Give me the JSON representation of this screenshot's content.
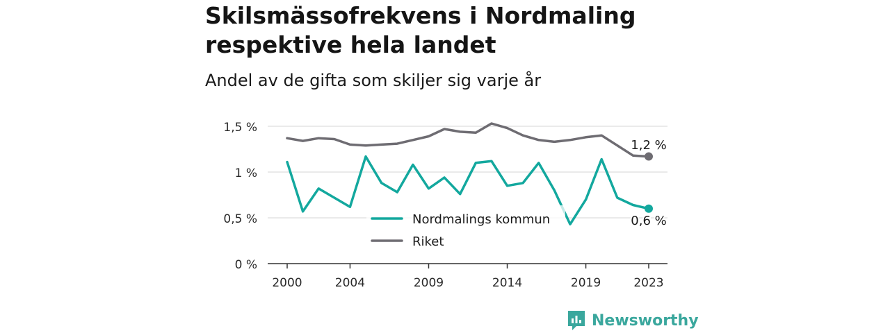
{
  "title": "Skilsmässofrekvens i Nordmaling respektive hela landet",
  "subtitle": "Andel av de gifta som skiljer sig varje år",
  "brand": "Newsworthy",
  "chart_data": {
    "type": "line",
    "x": [
      2000,
      2001,
      2002,
      2003,
      2004,
      2005,
      2006,
      2007,
      2008,
      2009,
      2010,
      2011,
      2012,
      2013,
      2014,
      2015,
      2016,
      2017,
      2018,
      2019,
      2020,
      2021,
      2022,
      2023
    ],
    "x_ticks": [
      "2000",
      "2004",
      "2009",
      "2014",
      "2019",
      "2023"
    ],
    "y_ticks": [
      "0 %",
      "0,5 %",
      "1 %",
      "1,5 %"
    ],
    "ylim": [
      0,
      1.6
    ],
    "grid": true,
    "legend_placement": "center",
    "series": [
      {
        "name": "Nordmalings kommun",
        "color": "#13a89e",
        "values": [
          1.11,
          0.57,
          0.82,
          0.72,
          0.62,
          1.17,
          0.88,
          0.78,
          1.08,
          0.82,
          0.94,
          0.76,
          1.1,
          1.12,
          0.85,
          0.88,
          1.1,
          0.8,
          0.43,
          0.7,
          1.14,
          0.72,
          0.64,
          0.6
        ],
        "end_label": "0,6 %"
      },
      {
        "name": "Riket",
        "color": "#6e6c72",
        "values": [
          1.37,
          1.34,
          1.37,
          1.36,
          1.3,
          1.29,
          1.3,
          1.31,
          1.35,
          1.39,
          1.47,
          1.44,
          1.43,
          1.53,
          1.48,
          1.4,
          1.35,
          1.33,
          1.35,
          1.38,
          1.4,
          1.29,
          1.18,
          1.17
        ],
        "end_label": "1,2 %"
      }
    ]
  }
}
